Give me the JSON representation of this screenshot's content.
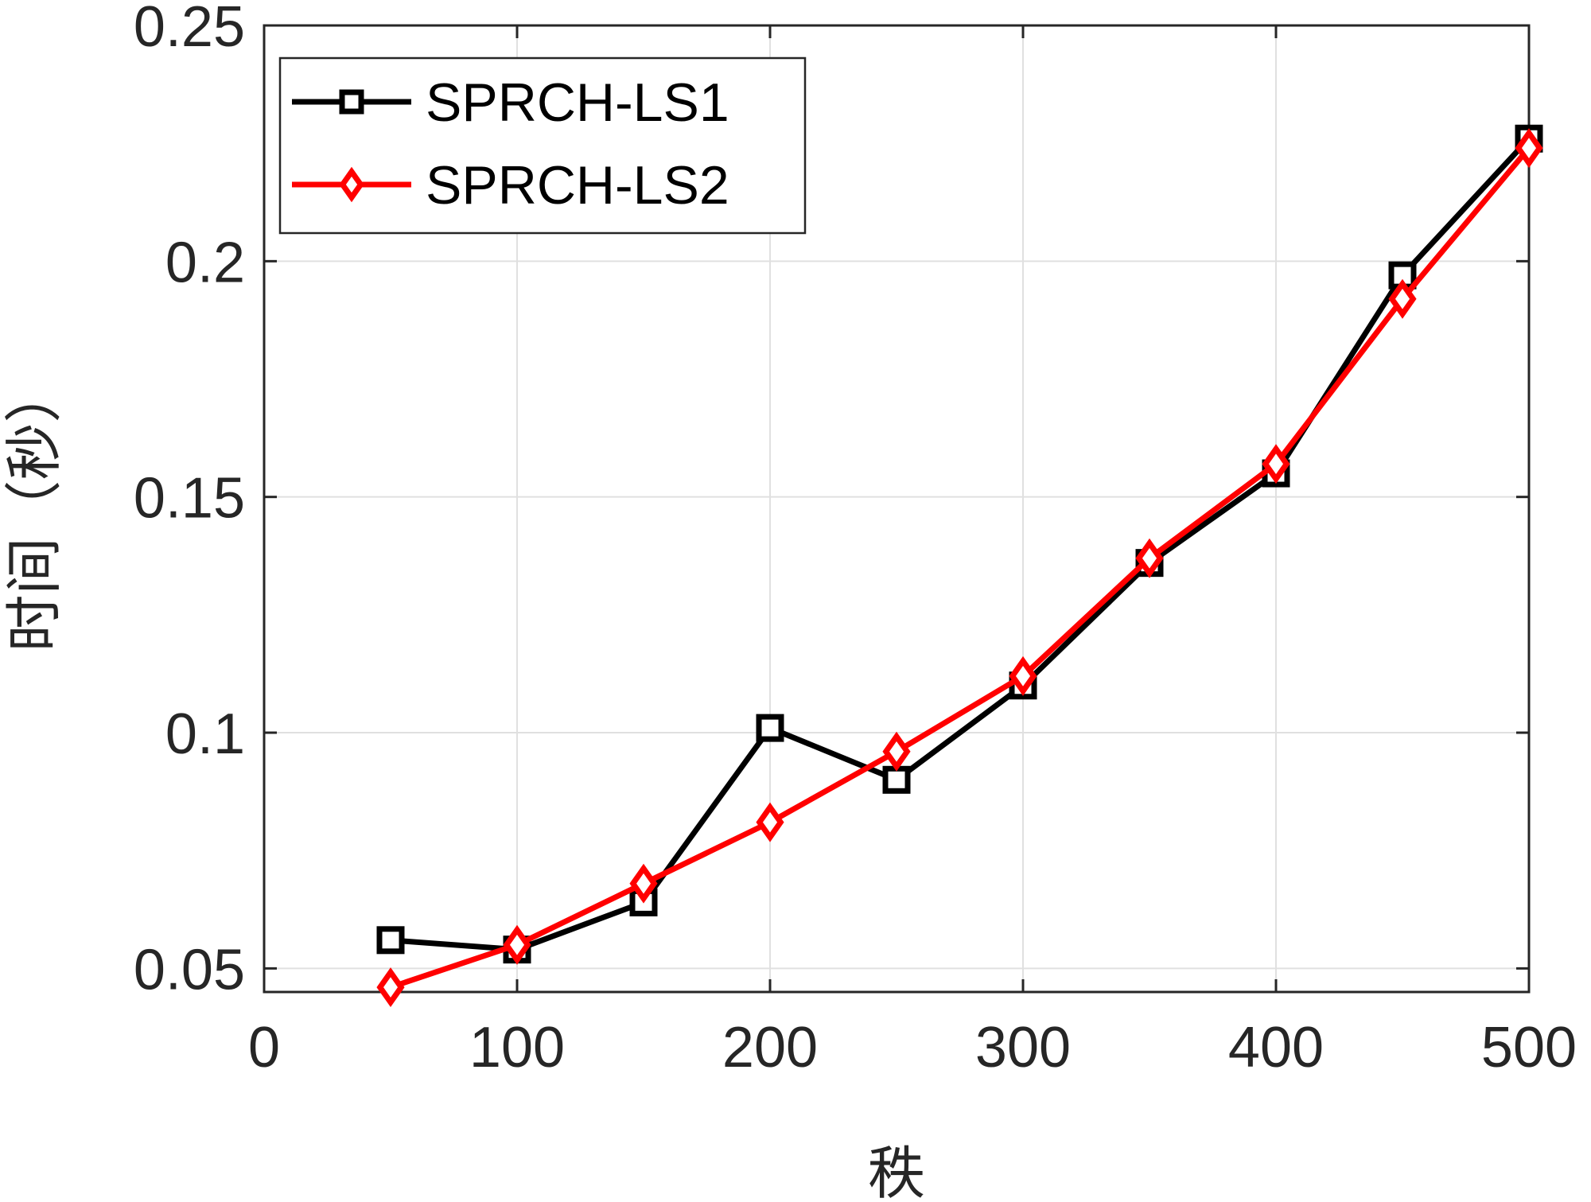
{
  "chart_data": {
    "type": "line",
    "xlabel": "秩",
    "ylabel": "时间（秒）",
    "xlim": [
      0,
      500
    ],
    "ylim": [
      0.045,
      0.25
    ],
    "xticks": [
      0,
      100,
      200,
      300,
      400,
      500
    ],
    "xtick_labels": [
      "0",
      "100",
      "200",
      "300",
      "400",
      "500"
    ],
    "yticks": [
      0.05,
      0.1,
      0.15,
      0.2,
      0.25
    ],
    "ytick_labels": [
      "0.05",
      "0.1",
      "0.15",
      "0.2",
      "0.25"
    ],
    "grid": true,
    "legend_position": "top-left",
    "x": [
      50,
      100,
      150,
      200,
      250,
      300,
      350,
      400,
      450,
      500
    ],
    "series": [
      {
        "name": "SPRCH-LS1",
        "color": "#000000",
        "marker": "square",
        "values": [
          0.056,
          0.054,
          0.064,
          0.101,
          0.09,
          0.11,
          0.136,
          0.155,
          0.197,
          0.226
        ]
      },
      {
        "name": "SPRCH-LS2",
        "color": "#ff0000",
        "marker": "diamond",
        "values": [
          0.046,
          0.055,
          0.068,
          0.081,
          0.096,
          0.112,
          0.137,
          0.157,
          0.192,
          0.224
        ]
      }
    ]
  }
}
